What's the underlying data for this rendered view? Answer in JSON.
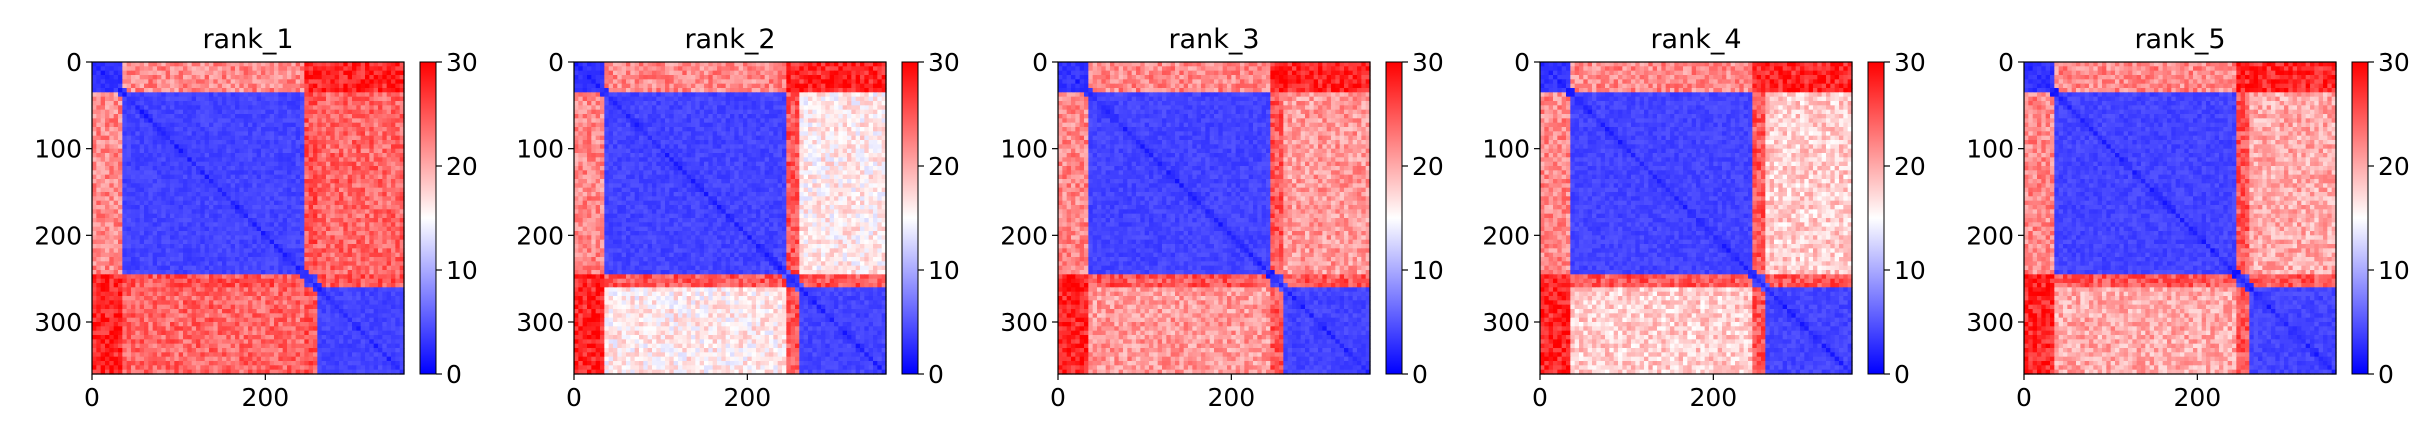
{
  "chart_data": [
    {
      "type": "heatmap",
      "title": "rank_1",
      "x_ticks": [
        0,
        200
      ],
      "y_ticks": [
        0,
        100,
        200,
        300
      ],
      "extent": [
        0,
        360
      ],
      "colorbar": {
        "ticks": [
          0,
          10,
          20,
          30
        ],
        "range": [
          0,
          30
        ],
        "cmap": "bwr"
      },
      "domains": [
        [
          0,
          35
        ],
        [
          35,
          245
        ],
        [
          245,
          262
        ],
        [
          262,
          360
        ]
      ],
      "matrix_coarse": [
        [
          3,
          22,
          28,
          28
        ],
        [
          22,
          4,
          25,
          24
        ],
        [
          28,
          25,
          4,
          25
        ],
        [
          28,
          24,
          25,
          4
        ]
      ]
    },
    {
      "type": "heatmap",
      "title": "rank_2",
      "x_ticks": [
        0,
        200
      ],
      "y_ticks": [
        0,
        100,
        200,
        300
      ],
      "extent": [
        0,
        360
      ],
      "colorbar": {
        "ticks": [
          0,
          10,
          20,
          30
        ],
        "range": [
          0,
          30
        ],
        "cmap": "bwr"
      },
      "domains": [
        [
          0,
          35
        ],
        [
          35,
          245
        ],
        [
          245,
          262
        ],
        [
          262,
          360
        ]
      ],
      "matrix_coarse": [
        [
          3,
          22,
          28,
          28
        ],
        [
          22,
          4,
          25,
          16
        ],
        [
          28,
          25,
          4,
          25
        ],
        [
          28,
          16,
          25,
          4
        ]
      ]
    },
    {
      "type": "heatmap",
      "title": "rank_3",
      "x_ticks": [
        0,
        200
      ],
      "y_ticks": [
        0,
        100,
        200,
        300
      ],
      "extent": [
        0,
        360
      ],
      "colorbar": {
        "ticks": [
          0,
          10,
          20,
          30
        ],
        "range": [
          0,
          30
        ],
        "cmap": "bwr"
      },
      "domains": [
        [
          0,
          35
        ],
        [
          35,
          245
        ],
        [
          245,
          262
        ],
        [
          262,
          360
        ]
      ],
      "matrix_coarse": [
        [
          3,
          22,
          28,
          28
        ],
        [
          22,
          4,
          25,
          21
        ],
        [
          28,
          25,
          4,
          25
        ],
        [
          28,
          21,
          25,
          4
        ]
      ]
    },
    {
      "type": "heatmap",
      "title": "rank_4",
      "x_ticks": [
        0,
        200
      ],
      "y_ticks": [
        0,
        100,
        200,
        300
      ],
      "extent": [
        0,
        360
      ],
      "colorbar": {
        "ticks": [
          0,
          10,
          20,
          30
        ],
        "range": [
          0,
          30
        ],
        "cmap": "bwr"
      },
      "domains": [
        [
          0,
          35
        ],
        [
          35,
          245
        ],
        [
          245,
          262
        ],
        [
          262,
          360
        ]
      ],
      "matrix_coarse": [
        [
          3,
          22,
          28,
          28
        ],
        [
          22,
          4,
          25,
          18
        ],
        [
          28,
          25,
          4,
          25
        ],
        [
          28,
          18,
          25,
          4
        ]
      ]
    },
    {
      "type": "heatmap",
      "title": "rank_5",
      "x_ticks": [
        0,
        200
      ],
      "y_ticks": [
        0,
        100,
        200,
        300
      ],
      "extent": [
        0,
        360
      ],
      "colorbar": {
        "ticks": [
          0,
          10,
          20,
          30
        ],
        "range": [
          0,
          30
        ],
        "cmap": "bwr"
      },
      "domains": [
        [
          0,
          35
        ],
        [
          35,
          245
        ],
        [
          245,
          262
        ],
        [
          262,
          360
        ]
      ],
      "matrix_coarse": [
        [
          3,
          22,
          28,
          28
        ],
        [
          22,
          4,
          25,
          20
        ],
        [
          28,
          25,
          4,
          25
        ],
        [
          28,
          20,
          25,
          4
        ]
      ]
    }
  ]
}
